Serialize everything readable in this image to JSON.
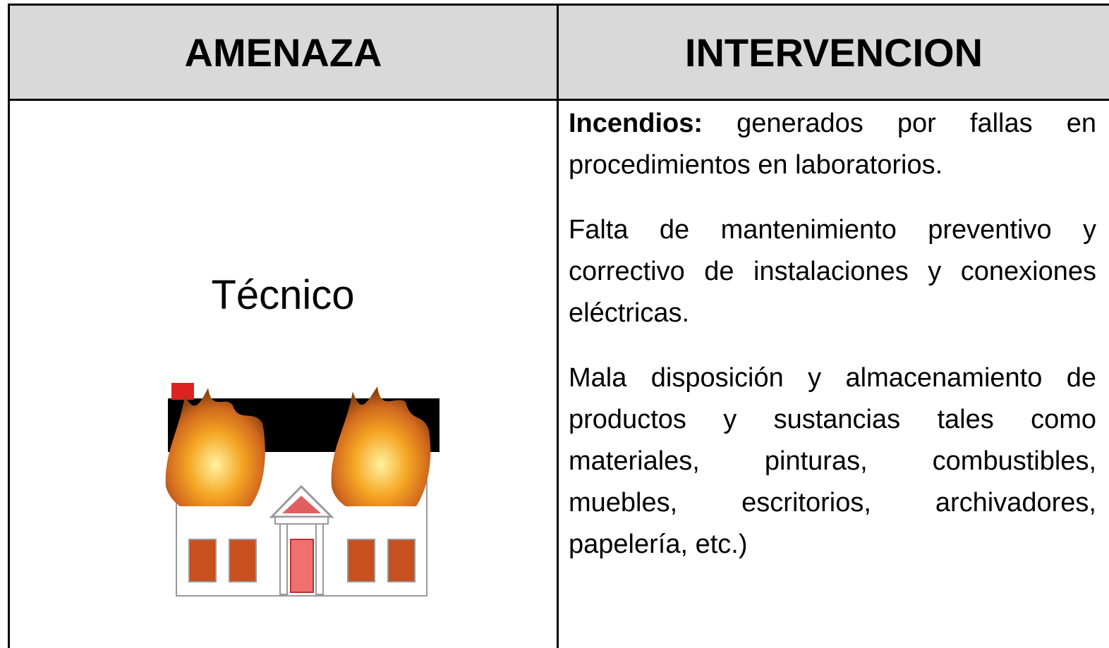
{
  "table": {
    "headers": [
      "AMENAZA",
      "INTERVENCION"
    ],
    "rows": [
      {
        "threat": "Técnico",
        "intervention": [
          {
            "label": "Incendios:",
            "text": "generados por fallas en procedimientos en laboratorios."
          },
          {
            "text": "Falta de mantenimiento preventivo y correctivo de instalaciones y conexiones eléctricas."
          },
          {
            "text": "Mala disposición y almacenamiento de productos y sustancias tales como materiales, pinturas, combustibles, muebles, escritorios, archivadores, papelería, etc.)"
          }
        ]
      }
    ]
  }
}
